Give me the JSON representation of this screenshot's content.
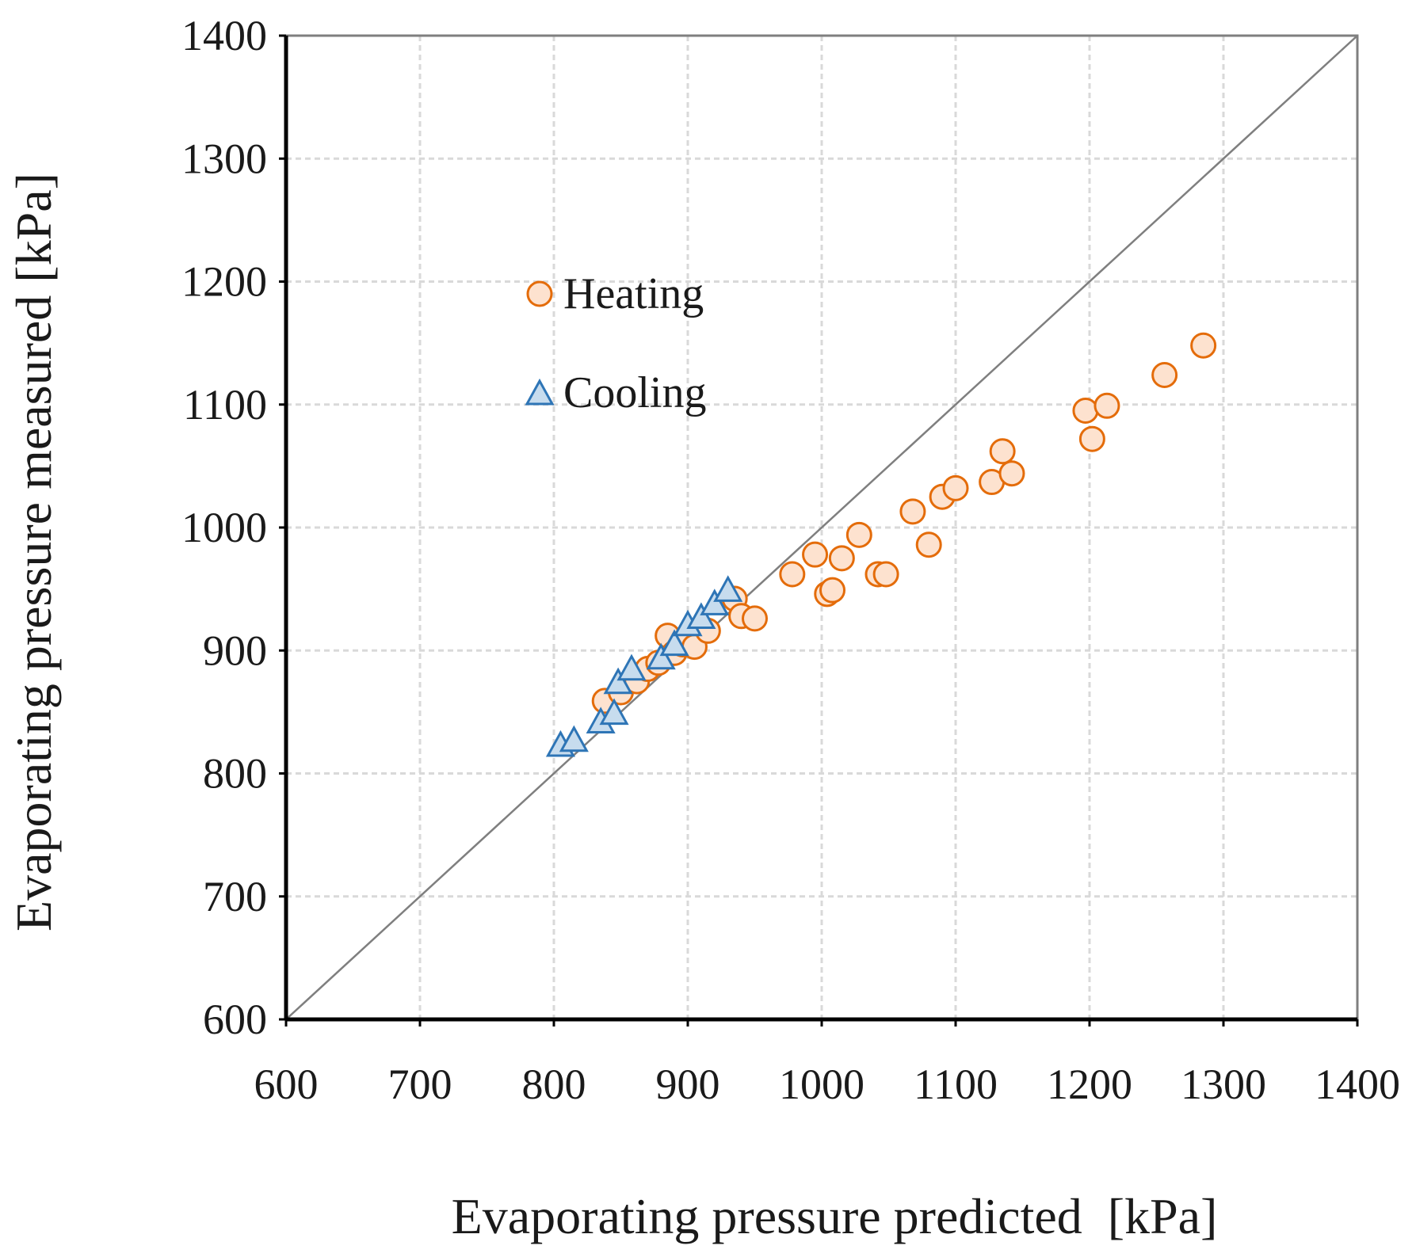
{
  "chart_data": {
    "type": "scatter",
    "xlabel": "Evaporating pressure predicted  [kPa]",
    "ylabel": "Evaporating pressure measured [kPa]",
    "xlim": [
      600,
      1400
    ],
    "ylim": [
      600,
      1400
    ],
    "xticks": [
      "600",
      "700",
      "800",
      "900",
      "1000",
      "1100",
      "1200",
      "1300",
      "1400"
    ],
    "yticks": [
      "600",
      "700",
      "800",
      "900",
      "1000",
      "1100",
      "1200",
      "1300",
      "1400"
    ],
    "grid": true,
    "legend_position": "upper-left inside plot",
    "reference_line": {
      "name": "1:1 line",
      "from": [
        600,
        600
      ],
      "to": [
        1400,
        1400
      ]
    },
    "series": [
      {
        "name": "Heating",
        "marker": "circle",
        "color": "#e46c0a",
        "fill": "#fde2cf",
        "points": [
          [
            838,
            859
          ],
          [
            850,
            866
          ],
          [
            862,
            875
          ],
          [
            870,
            885
          ],
          [
            878,
            890
          ],
          [
            885,
            912
          ],
          [
            890,
            898
          ],
          [
            896,
            905
          ],
          [
            905,
            903
          ],
          [
            915,
            916
          ],
          [
            935,
            942
          ],
          [
            940,
            928
          ],
          [
            950,
            926
          ],
          [
            978,
            962
          ],
          [
            995,
            978
          ],
          [
            1004,
            946
          ],
          [
            1008,
            949
          ],
          [
            1015,
            975
          ],
          [
            1028,
            994
          ],
          [
            1042,
            962
          ],
          [
            1048,
            962
          ],
          [
            1068,
            1013
          ],
          [
            1080,
            986
          ],
          [
            1090,
            1025
          ],
          [
            1100,
            1032
          ],
          [
            1127,
            1037
          ],
          [
            1135,
            1062
          ],
          [
            1142,
            1044
          ],
          [
            1197,
            1095
          ],
          [
            1202,
            1072
          ],
          [
            1213,
            1099
          ],
          [
            1256,
            1124
          ],
          [
            1285,
            1148
          ]
        ]
      },
      {
        "name": "Cooling",
        "marker": "triangle",
        "color": "#2e75b6",
        "fill": "#c7dcee",
        "points": [
          [
            805,
            822
          ],
          [
            815,
            826
          ],
          [
            835,
            841
          ],
          [
            845,
            848
          ],
          [
            848,
            873
          ],
          [
            858,
            884
          ],
          [
            880,
            893
          ],
          [
            890,
            904
          ],
          [
            900,
            920
          ],
          [
            910,
            926
          ],
          [
            920,
            937
          ],
          [
            930,
            948
          ]
        ]
      }
    ]
  }
}
